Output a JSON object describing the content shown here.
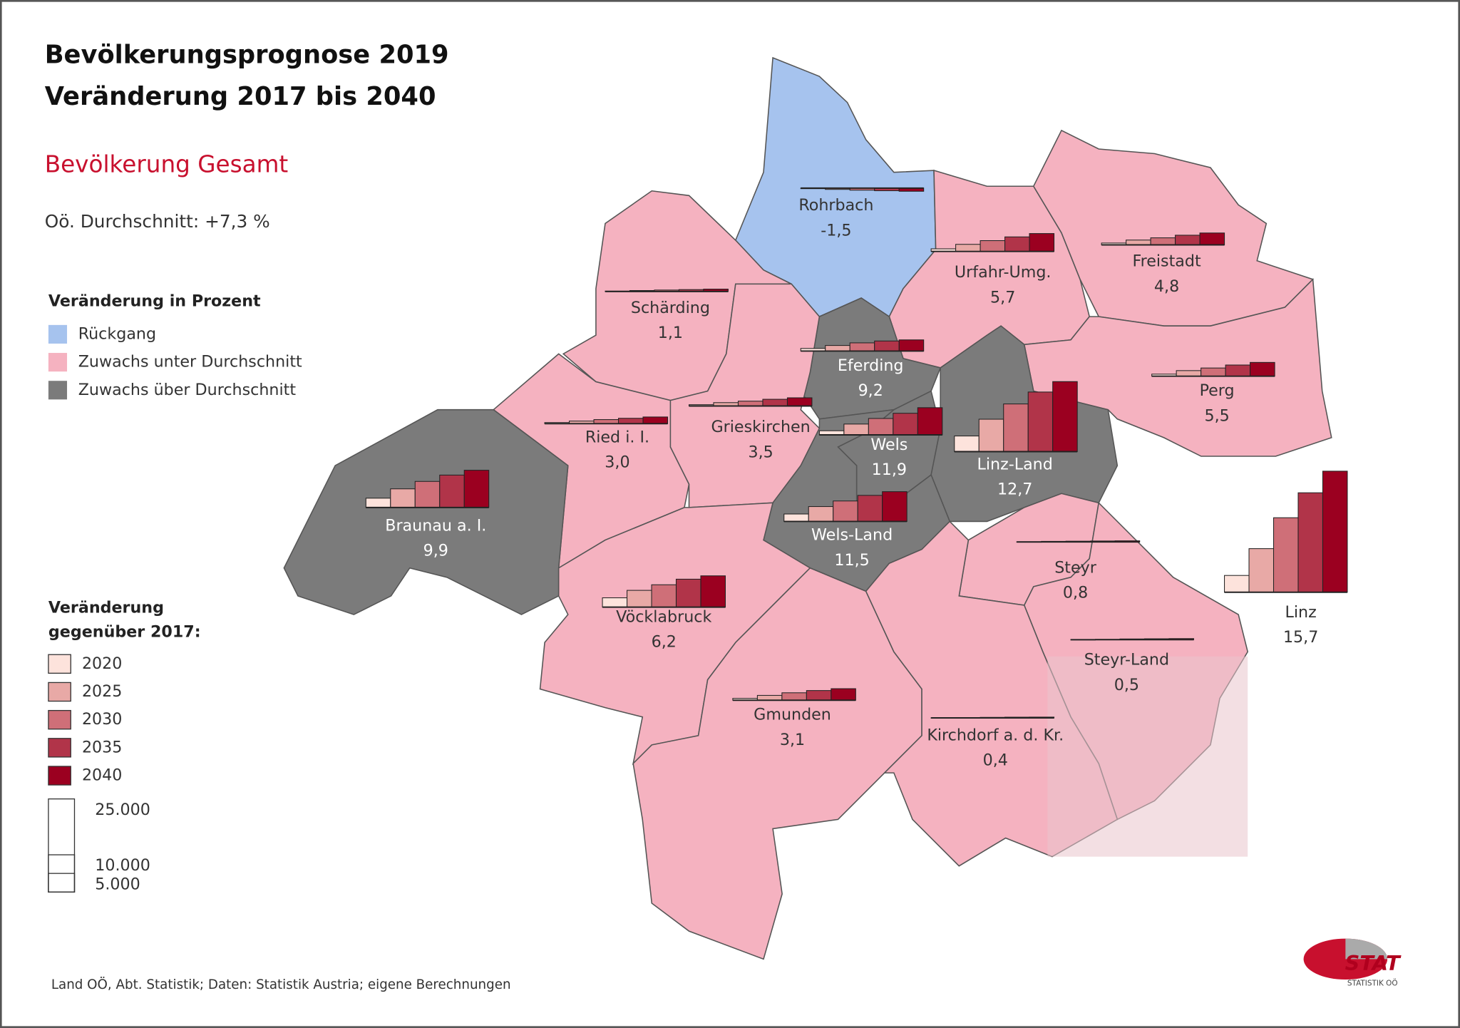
{
  "header": {
    "title_line_1": "Bevölkerungsprognose 2019",
    "title_line_2": "Veränderung 2017 bis 2040",
    "subtitle": "Bevölkerung Gesamt",
    "average": "Oö. Durchschnitt: +7,3 %"
  },
  "legend": {
    "heading": "Veränderung in Prozent",
    "classes": [
      {
        "label": "Rückgang",
        "color": "#a6c3ee"
      },
      {
        "label": "Zuwachs   unter Durchschnitt",
        "color": "#f5b2c0"
      },
      {
        "label": "Zuwachs    über Durchschnitt",
        "color": "#7b7b7b"
      }
    ]
  },
  "size_legend": {
    "heading_line_1": "Veränderung",
    "heading_line_2": "gegenüber 2017:",
    "years": [
      {
        "label": "2020",
        "color": "#fde3dc"
      },
      {
        "label": "2025",
        "color": "#e8a9a6"
      },
      {
        "label": "2030",
        "color": "#cf6f78"
      },
      {
        "label": "2035",
        "color": "#b13449"
      },
      {
        "label": "2040",
        "color": "#9b0020"
      }
    ],
    "scale": [
      {
        "value": 25000,
        "label": "25.000"
      },
      {
        "value": 10000,
        "label": "10.000"
      },
      {
        "value": 5000,
        "label": "5.000"
      }
    ]
  },
  "districts": [
    {
      "name": "Rohrbach",
      "value": "-1,5",
      "class": 0,
      "change": [
        -150,
        -350,
        -550,
        -700,
        -850
      ]
    },
    {
      "name": "Urfahr-Umg.",
      "value": "5,7",
      "class": 1,
      "change": [
        700,
        1900,
        2900,
        3900,
        4800
      ]
    },
    {
      "name": "Freistadt",
      "value": "4,8",
      "class": 1,
      "change": [
        500,
        1300,
        1900,
        2600,
        3200
      ]
    },
    {
      "name": "Schärding",
      "value": "1,1",
      "class": 1,
      "change": [
        100,
        250,
        380,
        500,
        630
      ]
    },
    {
      "name": "Eferding",
      "value": "9,2",
      "class": 2,
      "change": [
        700,
        1500,
        2200,
        2700,
        3000
      ]
    },
    {
      "name": "Perg",
      "value": "5,5",
      "class": 1,
      "change": [
        550,
        1500,
        2200,
        3000,
        3700
      ]
    },
    {
      "name": "Ried i. I.",
      "value": "3,0",
      "class": 1,
      "change": [
        300,
        700,
        1100,
        1450,
        1800
      ]
    },
    {
      "name": "Grieskirchen",
      "value": "3,5",
      "class": 1,
      "change": [
        350,
        900,
        1300,
        1800,
        2200
      ]
    },
    {
      "name": "Wels",
      "value": "11,9",
      "class": 2,
      "change": [
        1100,
        2900,
        4400,
        5800,
        7300
      ]
    },
    {
      "name": "Linz-Land",
      "value": "12,7",
      "class": 2,
      "change": [
        4200,
        8700,
        12800,
        16000,
        18800
      ]
    },
    {
      "name": "Braunau a. I.",
      "value": "9,9",
      "class": 2,
      "change": [
        2500,
        5000,
        7000,
        8700,
        10000
      ]
    },
    {
      "name": "Wels-Land",
      "value": "11,5",
      "class": 2,
      "change": [
        2000,
        4000,
        5500,
        7000,
        8000
      ]
    },
    {
      "name": "Linz",
      "value": "15,7",
      "class": 2,
      "change": [
        4500,
        11700,
        20000,
        26700,
        32500
      ]
    },
    {
      "name": "Steyr",
      "value": "0,8",
      "class": 1,
      "change": [
        50,
        150,
        200,
        250,
        300
      ]
    },
    {
      "name": "Vöcklabruck",
      "value": "6,2",
      "class": 1,
      "change": [
        2500,
        4500,
        6000,
        7500,
        8400
      ]
    },
    {
      "name": "Steyr-Land",
      "value": "0,5",
      "class": 1,
      "change": [
        50,
        100,
        200,
        250,
        300
      ]
    },
    {
      "name": "Gmunden",
      "value": "3,1",
      "class": 1,
      "change": [
        500,
        1300,
        2000,
        2600,
        3100
      ]
    },
    {
      "name": "Kirchdorf a. d. Kr.",
      "value": "0,4",
      "class": 1,
      "change": [
        50,
        100,
        150,
        200,
        220
      ]
    }
  ],
  "footer": {
    "source": "Land OÖ, Abt. Statistik; Daten: Statistik Austria; eigene Berechnungen",
    "logo": "STAT",
    "logo_sub": "STATISTIK OÖ"
  }
}
